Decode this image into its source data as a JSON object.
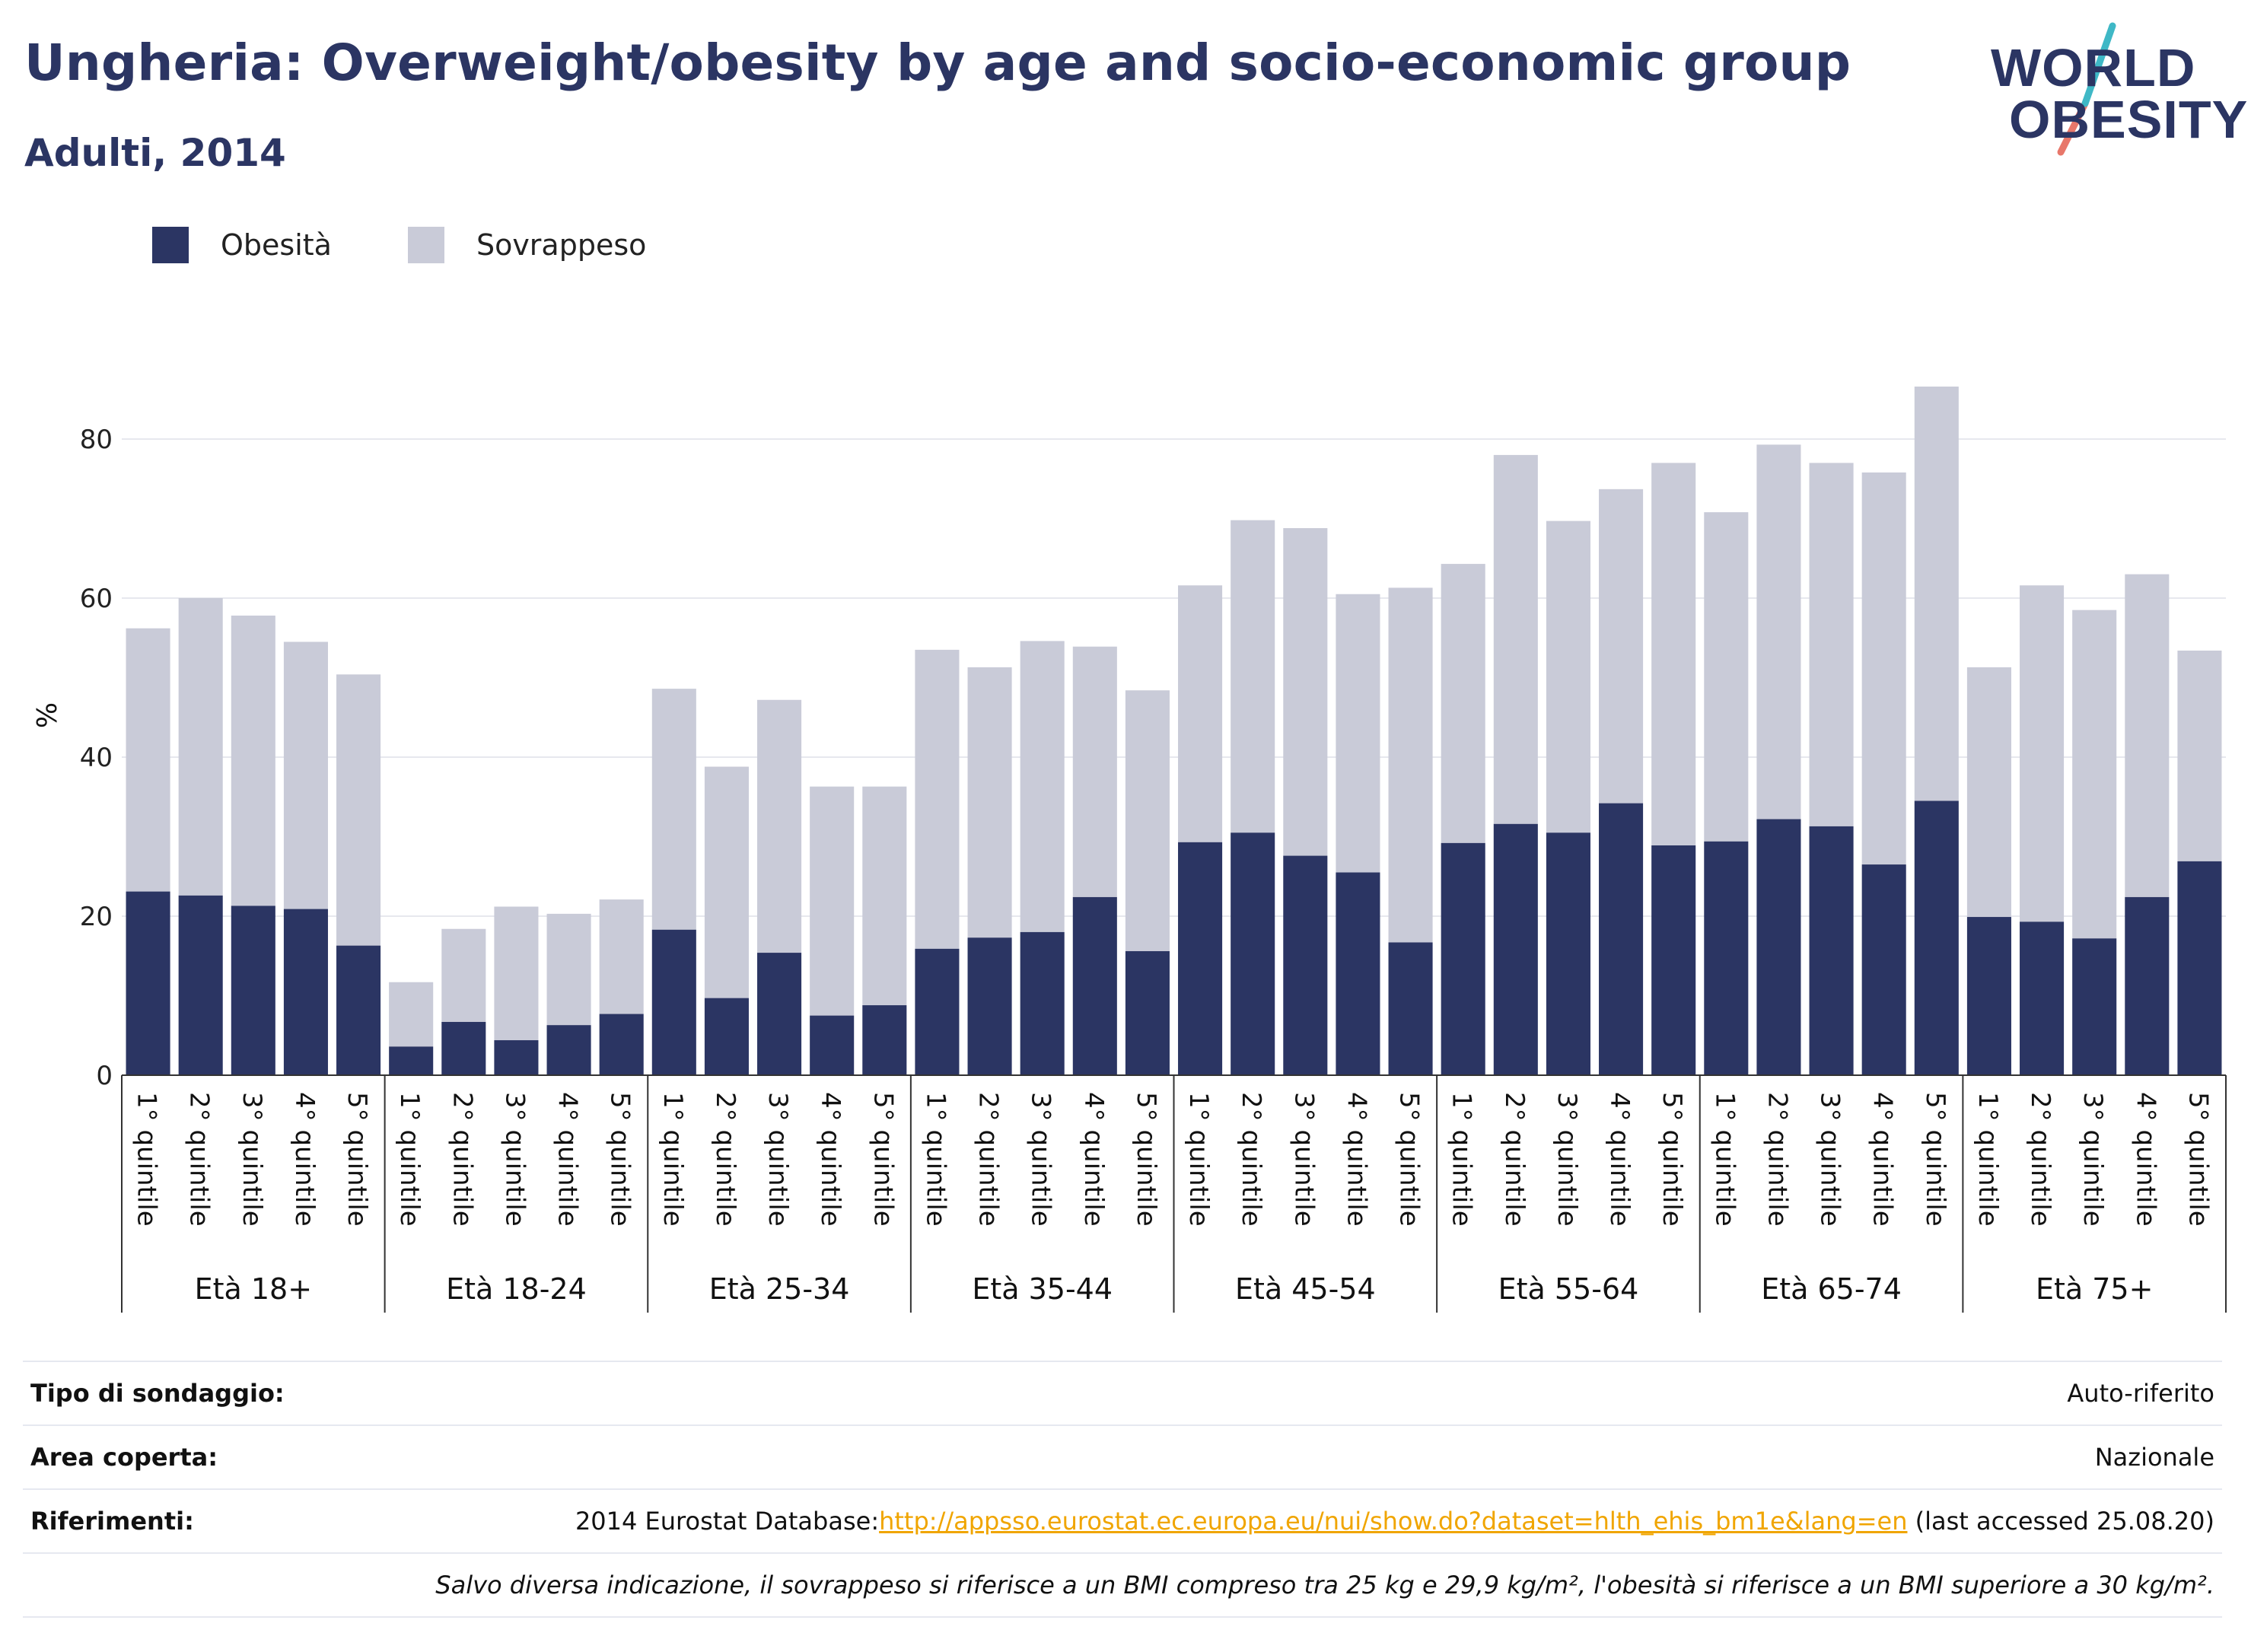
{
  "header": {
    "title": "Ungheria: Overweight/obesity by age and socio-economic group",
    "subtitle": "Adulti, 2014"
  },
  "logo": {
    "line1": "WORLD",
    "line2": "OBESITY"
  },
  "legend": [
    {
      "label": "Obesità",
      "color": "#2b3563"
    },
    {
      "label": "Sovrappeso",
      "color": "#c9cbd8"
    }
  ],
  "chart_data": {
    "type": "bar",
    "stacked": true,
    "ylabel": "%",
    "ylim": [
      0,
      90
    ],
    "yticks": [
      0,
      20,
      40,
      60,
      80
    ],
    "grid": true,
    "legend_position": "top-left",
    "groups": [
      "Età 18+",
      "Età 18-24",
      "Età 25-34",
      "Età 35-44",
      "Età 45-54",
      "Età 55-64",
      "Età 65-74",
      "Età 75+"
    ],
    "categories": [
      "1° quintile",
      "2° quintile",
      "3° quintile",
      "4° quintile",
      "5° quintile"
    ],
    "series": [
      {
        "name": "Obesità",
        "color": "#2b3563",
        "values": [
          [
            23.1,
            22.6,
            21.3,
            20.9,
            16.3
          ],
          [
            3.6,
            6.7,
            4.4,
            6.3,
            7.7
          ],
          [
            18.3,
            9.7,
            15.4,
            7.5,
            8.8
          ],
          [
            15.9,
            17.3,
            18.0,
            22.4,
            15.6
          ],
          [
            29.3,
            30.5,
            27.6,
            25.5,
            16.7
          ],
          [
            29.2,
            31.6,
            30.5,
            34.2,
            28.9
          ],
          [
            29.4,
            32.2,
            31.3,
            26.5,
            34.5
          ],
          [
            19.9,
            19.3,
            17.2,
            22.4,
            26.9
          ]
        ]
      },
      {
        "name": "Sovrappeso",
        "color": "#c9cbd8",
        "values": [
          [
            33.1,
            37.4,
            36.5,
            33.6,
            34.1
          ],
          [
            8.1,
            11.7,
            16.8,
            14.0,
            14.4
          ],
          [
            30.3,
            29.1,
            31.8,
            28.8,
            27.5
          ],
          [
            37.6,
            34.0,
            36.6,
            31.5,
            32.8
          ],
          [
            32.3,
            39.3,
            41.2,
            35.0,
            44.6
          ],
          [
            35.1,
            46.4,
            39.2,
            39.5,
            48.1
          ],
          [
            41.4,
            47.1,
            45.7,
            49.3,
            52.1
          ],
          [
            31.4,
            42.3,
            41.3,
            40.6,
            26.5
          ]
        ]
      }
    ]
  },
  "info": {
    "survey_label": "Tipo di sondaggio:",
    "survey_value": "Auto-riferito",
    "area_label": "Area coperta:",
    "area_value": "Nazionale",
    "refs_label": "Riferimenti:",
    "refs_prefix": "2014 Eurostat Database:",
    "refs_link": "http://appsso.eurostat.ec.europa.eu/nui/show.do?dataset=hlth_ehis_bm1e&lang=en",
    "refs_suffix": " (last accessed 25.08.20)",
    "note": "Salvo diversa indicazione, il sovrappeso si riferisce a un BMI compreso tra 25 kg e 29,9 kg/m², l'obesità si riferisce a un BMI superiore a 30 kg/m²."
  }
}
